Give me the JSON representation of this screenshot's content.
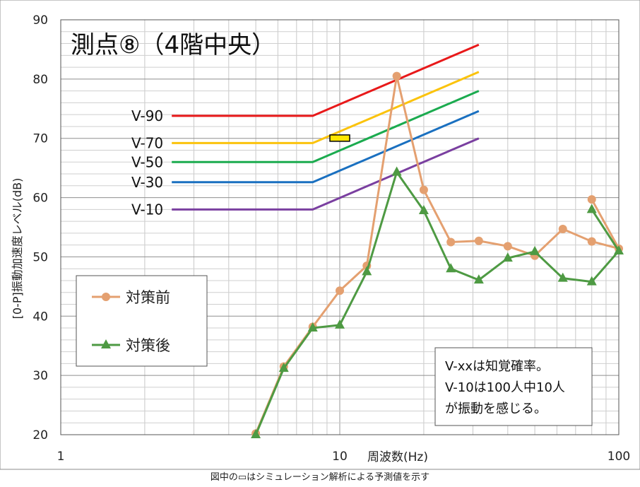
{
  "chart_data": {
    "type": "line",
    "title": "測点⑧（4階中央）",
    "ylabel": "[0-P]振動加速度レベル(dB)",
    "xlabel": "周波数(Hz)",
    "x_scale": "log",
    "xlim": [
      1,
      100
    ],
    "ylim": [
      20,
      90
    ],
    "x_ticks": [
      "1",
      "10",
      "100"
    ],
    "y_ticks": [
      "20",
      "30",
      "40",
      "50",
      "60",
      "70",
      "80",
      "90"
    ],
    "grid": true,
    "series": [
      {
        "name": "対策前",
        "color": "#e4a070",
        "marker": "circle",
        "x": [
          5,
          6.3,
          8,
          10,
          12.5,
          16,
          20,
          25,
          31.5,
          40,
          50,
          63,
          80,
          100
        ],
        "y": [
          20.2,
          31.5,
          38.2,
          44.3,
          48.5,
          80.5,
          61.3,
          52.5,
          52.7,
          51.8,
          50.2,
          54.7,
          52.6,
          51.4
        ]
      },
      {
        "name": "対策後",
        "color": "#4e9a43",
        "marker": "triangle",
        "x": [
          5,
          6.3,
          8,
          10,
          12.5,
          16,
          20,
          25,
          31.5,
          40,
          50,
          63,
          80,
          100
        ],
        "y": [
          20.0,
          31.2,
          38.0,
          38.5,
          47.5,
          64.3,
          57.8,
          48.0,
          46.1,
          49.8,
          50.9,
          46.4,
          45.8,
          51.0
        ]
      }
    ],
    "tail_points": {
      "before": {
        "x": 80,
        "y": 59.7
      },
      "after": {
        "x": 80,
        "y": 58.0
      }
    },
    "reference_lines": [
      {
        "label": "V-90",
        "color": "#e8191a",
        "flat": 73.8,
        "end": 85.8
      },
      {
        "label": "V-70",
        "color": "#fbc30c",
        "flat": 69.2,
        "end": 81.2
      },
      {
        "label": "V-50",
        "color": "#1bab4f",
        "flat": 66.0,
        "end": 78.0
      },
      {
        "label": "V-30",
        "color": "#1a70c0",
        "flat": 62.6,
        "end": 74.6
      },
      {
        "label": "V-10",
        "color": "#7a3fa0",
        "flat": 58.0,
        "end": 70.0
      }
    ],
    "reference_line_x": {
      "start": 2.5,
      "knee": 8,
      "end": 31.5
    },
    "simulation_marker": {
      "x": 10,
      "y": 70.1,
      "fill": "#ffe600"
    },
    "legend_placement": "left",
    "legend": [
      "対策前",
      "対策後"
    ],
    "note": [
      "V-xxは知覚確率。",
      "V-10は100人中10人",
      "が振動を感じる。"
    ]
  },
  "caption": "図中の▭はシミュレーション解析による予測値を示す"
}
